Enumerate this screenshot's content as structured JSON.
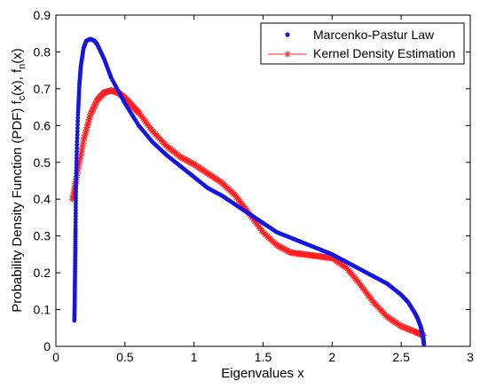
{
  "chart_data": {
    "type": "scatter",
    "xlabel": "Eigenvalues x",
    "ylabel_parts": [
      "Probability Density Function (PDF) f",
      "(x), f",
      "(x)"
    ],
    "ylabel_subs": [
      "c",
      "n"
    ],
    "xlim": [
      0,
      3
    ],
    "ylim": [
      0,
      0.9
    ],
    "xticks": [
      "0",
      "0.5",
      "1",
      "1.5",
      "2",
      "2.5",
      "3"
    ],
    "yticks": [
      "0",
      "0.1",
      "0.2",
      "0.3",
      "0.4",
      "0.5",
      "0.6",
      "0.7",
      "0.8",
      "0.9"
    ],
    "legend_position": "top-right",
    "colors": {
      "mp": "#1616dc",
      "kde": "#ff2020"
    },
    "series": [
      {
        "name": "Marcenko-Pastur Law",
        "marker": "dot",
        "x": [
          0.134,
          0.136,
          0.138,
          0.14,
          0.142,
          0.145,
          0.15,
          0.16,
          0.17,
          0.18,
          0.2,
          0.22,
          0.25,
          0.28,
          0.3,
          0.35,
          0.4,
          0.5,
          0.6,
          0.7,
          0.8,
          0.9,
          1.0,
          1.1,
          1.2,
          1.3,
          1.4,
          1.5,
          1.6,
          1.7,
          1.8,
          1.9,
          2.0,
          2.1,
          2.2,
          2.3,
          2.4,
          2.5,
          2.55,
          2.6,
          2.62,
          2.64,
          2.65,
          2.66,
          2.665
        ],
        "y": [
          0.07,
          0.12,
          0.18,
          0.25,
          0.32,
          0.42,
          0.52,
          0.63,
          0.71,
          0.76,
          0.81,
          0.83,
          0.835,
          0.83,
          0.82,
          0.78,
          0.73,
          0.66,
          0.6,
          0.555,
          0.52,
          0.49,
          0.46,
          0.43,
          0.41,
          0.385,
          0.36,
          0.335,
          0.31,
          0.295,
          0.28,
          0.265,
          0.25,
          0.23,
          0.21,
          0.19,
          0.17,
          0.14,
          0.12,
          0.09,
          0.075,
          0.055,
          0.04,
          0.02,
          0.005
        ]
      },
      {
        "name": "Kernel Density Estimation",
        "marker": "star",
        "x": [
          0.12,
          0.15,
          0.2,
          0.25,
          0.3,
          0.35,
          0.4,
          0.45,
          0.5,
          0.55,
          0.6,
          0.7,
          0.8,
          0.9,
          1.0,
          1.1,
          1.2,
          1.3,
          1.4,
          1.5,
          1.6,
          1.7,
          1.8,
          1.9,
          2.0,
          2.1,
          2.2,
          2.3,
          2.4,
          2.5,
          2.6,
          2.66
        ],
        "y": [
          0.4,
          0.46,
          0.56,
          0.63,
          0.67,
          0.69,
          0.695,
          0.69,
          0.675,
          0.655,
          0.635,
          0.585,
          0.545,
          0.515,
          0.495,
          0.47,
          0.445,
          0.41,
          0.36,
          0.31,
          0.275,
          0.255,
          0.25,
          0.245,
          0.24,
          0.215,
          0.17,
          0.12,
          0.08,
          0.055,
          0.04,
          0.03
        ]
      }
    ]
  }
}
